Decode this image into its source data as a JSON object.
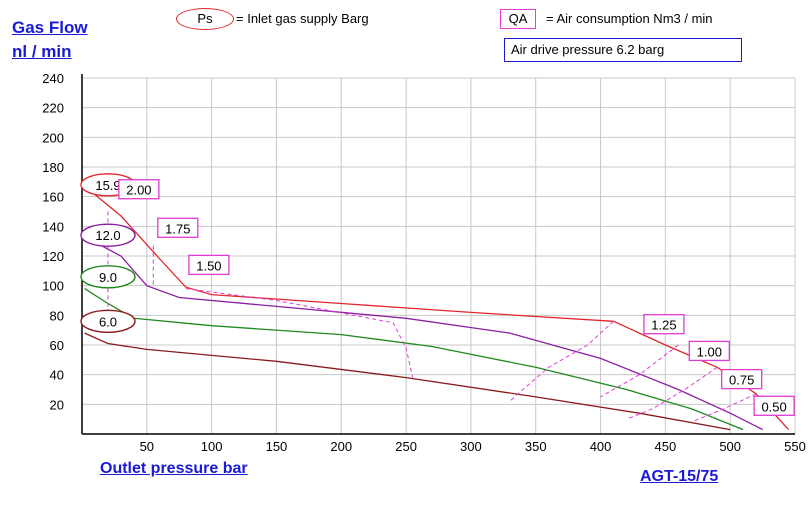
{
  "header": {
    "ylabel_line1": "Gas Flow",
    "ylabel_line2": "nl / min",
    "ps_symbol": "Ps",
    "ps_legend": "= Inlet gas supply  Barg",
    "qa_symbol": "QA",
    "qa_legend": "= Air consumption  Nm3 / min",
    "drive_pressure": "Air drive pressure  6.2 barg"
  },
  "footer": {
    "xlabel": "Outlet pressure    bar",
    "model": "AGT-15/75"
  },
  "colors": {
    "grid": "#c8c8c8",
    "axis": "#000000",
    "ps_oval": "#e3262b",
    "qa_box": "#e23ad6",
    "link_blue": "#1a1ad6"
  },
  "chart_data": {
    "type": "line",
    "xlabel": "Outlet pressure    bar",
    "ylabel": "Gas Flow nl / min",
    "xlim": [
      0,
      550
    ],
    "ylim": [
      0,
      240
    ],
    "xticks": [
      50,
      100,
      150,
      200,
      250,
      300,
      350,
      400,
      450,
      500,
      550
    ],
    "yticks": [
      20,
      40,
      60,
      80,
      100,
      120,
      140,
      160,
      180,
      200,
      220,
      240
    ],
    "grid": true,
    "series": [
      {
        "name": "15.9",
        "color": "#e3262b",
        "points": [
          [
            2,
            167
          ],
          [
            30,
            147
          ],
          [
            60,
            118
          ],
          [
            80,
            99
          ],
          [
            100,
            94
          ],
          [
            200,
            88
          ],
          [
            300,
            82
          ],
          [
            410,
            76
          ],
          [
            450,
            60
          ],
          [
            490,
            45
          ],
          [
            520,
            27
          ],
          [
            545,
            3
          ]
        ]
      },
      {
        "name": "12.0",
        "color": "#8b1fa3",
        "points": [
          [
            2,
            133
          ],
          [
            30,
            120
          ],
          [
            50,
            100
          ],
          [
            75,
            92
          ],
          [
            150,
            86
          ],
          [
            250,
            78
          ],
          [
            330,
            68
          ],
          [
            400,
            51
          ],
          [
            460,
            30
          ],
          [
            500,
            14
          ],
          [
            525,
            3
          ]
        ]
      },
      {
        "name": "9.0",
        "color": "#1f8a1f",
        "points": [
          [
            2,
            98
          ],
          [
            20,
            88
          ],
          [
            40,
            78
          ],
          [
            100,
            73
          ],
          [
            200,
            67
          ],
          [
            270,
            59
          ],
          [
            350,
            45
          ],
          [
            420,
            30
          ],
          [
            470,
            17
          ],
          [
            510,
            3
          ]
        ]
      },
      {
        "name": "6.0",
        "color": "#8b1a1a",
        "points": [
          [
            2,
            68
          ],
          [
            20,
            61
          ],
          [
            50,
            57
          ],
          [
            100,
            53
          ],
          [
            150,
            49
          ],
          [
            250,
            38
          ],
          [
            350,
            25
          ],
          [
            430,
            14
          ],
          [
            500,
            3
          ]
        ]
      }
    ],
    "air_consumption_lines": [
      {
        "label": "2.00",
        "points": [
          [
            20,
            150
          ],
          [
            20,
            82
          ]
        ]
      },
      {
        "label": "1.75",
        "points": [
          [
            55,
            127
          ],
          [
            55,
            100
          ]
        ]
      },
      {
        "label": "1.50",
        "points": [
          [
            80,
            98
          ],
          [
            150,
            90
          ],
          [
            240,
            75
          ],
          [
            250,
            58
          ],
          [
            255,
            38
          ]
        ]
      },
      {
        "label": "1.25",
        "points": [
          [
            410,
            76
          ],
          [
            390,
            60
          ],
          [
            360,
            45
          ],
          [
            340,
            30
          ],
          [
            330,
            22
          ]
        ]
      },
      {
        "label": "1.00",
        "points": [
          [
            460,
            60
          ],
          [
            430,
            40
          ],
          [
            400,
            25
          ]
        ]
      },
      {
        "label": "0.75",
        "points": [
          [
            490,
            45
          ],
          [
            465,
            30
          ],
          [
            440,
            17
          ],
          [
            420,
            10
          ]
        ]
      },
      {
        "label": "0.50",
        "points": [
          [
            520,
            27
          ],
          [
            495,
            17
          ],
          [
            470,
            8
          ]
        ]
      }
    ],
    "ps_labels": [
      {
        "text": "15.9",
        "x": 0,
        "y": 168
      },
      {
        "text": "12.0",
        "x": 0,
        "y": 134
      },
      {
        "text": "9.0",
        "x": 0,
        "y": 106
      },
      {
        "text": "6.0",
        "x": 0,
        "y": 76
      }
    ],
    "qa_labels": [
      {
        "text": "2.00",
        "x": 30,
        "y": 164
      },
      {
        "text": "1.75",
        "x": 60,
        "y": 138
      },
      {
        "text": "1.50",
        "x": 84,
        "y": 113
      },
      {
        "text": "1.25",
        "x": 435,
        "y": 73
      },
      {
        "text": "1.00",
        "x": 470,
        "y": 55
      },
      {
        "text": "0.75",
        "x": 495,
        "y": 36
      },
      {
        "text": "0.50",
        "x": 520,
        "y": 18
      }
    ]
  }
}
